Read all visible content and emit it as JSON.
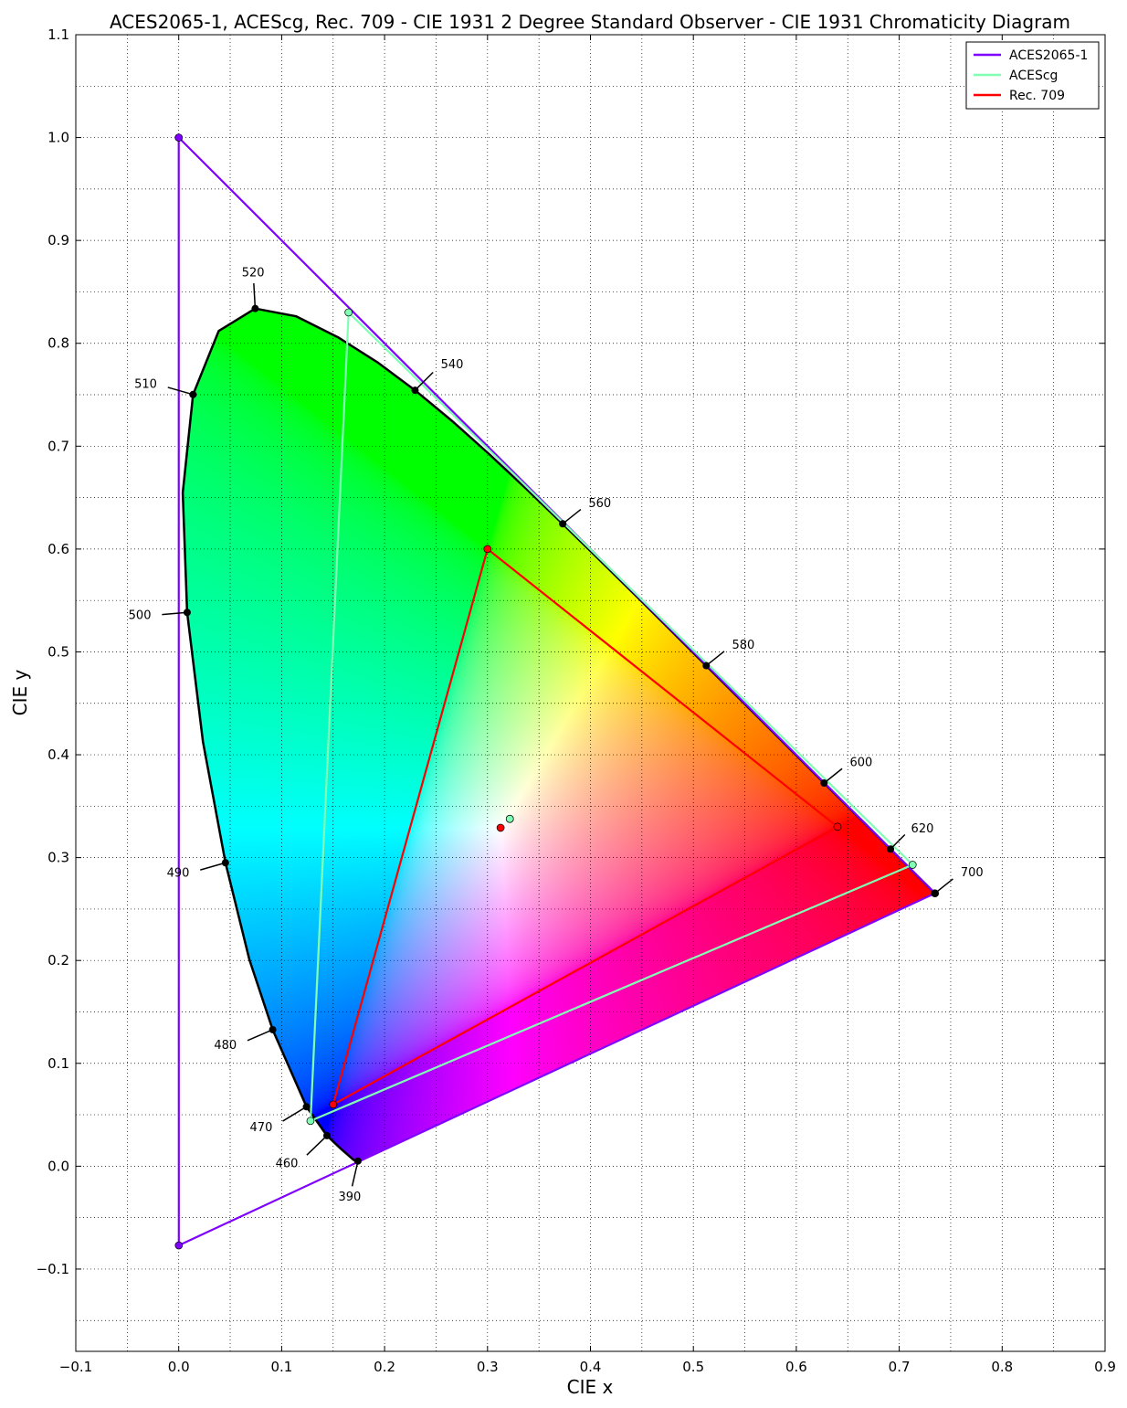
{
  "chart_data": {
    "type": "scatter",
    "title": "ACES2065-1, ACEScg, Rec. 709 - CIE 1931 2 Degree Standard Observer - CIE 1931 Chromaticity Diagram",
    "xlabel": "CIE x",
    "ylabel": "CIE y",
    "xlim": [
      -0.1,
      0.9
    ],
    "ylim": [
      -0.18,
      1.1
    ],
    "xticks": [
      "−0.1",
      "0.0",
      "0.1",
      "0.2",
      "0.3",
      "0.4",
      "0.5",
      "0.6",
      "0.7",
      "0.8",
      "0.9"
    ],
    "yticks": [
      "−0.1",
      "0.0",
      "0.1",
      "0.2",
      "0.3",
      "0.4",
      "0.5",
      "0.6",
      "0.7",
      "0.8",
      "0.9",
      "1.0",
      "1.1"
    ],
    "grid": true,
    "legend_position": "top-right",
    "spectral_locus": [
      [
        0.1741,
        0.005
      ],
      [
        0.1738,
        0.0049
      ],
      [
        0.1733,
        0.0048
      ],
      [
        0.1726,
        0.0048
      ],
      [
        0.1714,
        0.0051
      ],
      [
        0.1689,
        0.0069
      ],
      [
        0.1644,
        0.0109
      ],
      [
        0.1566,
        0.0177
      ],
      [
        0.144,
        0.0297
      ],
      [
        0.1241,
        0.0578
      ],
      [
        0.0913,
        0.1327
      ],
      [
        0.0687,
        0.2007
      ],
      [
        0.0454,
        0.295
      ],
      [
        0.0235,
        0.4127
      ],
      [
        0.0082,
        0.5384
      ],
      [
        0.0039,
        0.6548
      ],
      [
        0.0139,
        0.7502
      ],
      [
        0.0389,
        0.812
      ],
      [
        0.0743,
        0.8338
      ],
      [
        0.1142,
        0.8262
      ],
      [
        0.1547,
        0.8059
      ],
      [
        0.1929,
        0.7816
      ],
      [
        0.2296,
        0.7543
      ],
      [
        0.2658,
        0.7243
      ],
      [
        0.3016,
        0.6923
      ],
      [
        0.3373,
        0.6589
      ],
      [
        0.3731,
        0.6245
      ],
      [
        0.4087,
        0.5896
      ],
      [
        0.4441,
        0.5547
      ],
      [
        0.4788,
        0.5202
      ],
      [
        0.5125,
        0.4866
      ],
      [
        0.5448,
        0.4544
      ],
      [
        0.5752,
        0.4242
      ],
      [
        0.6029,
        0.3965
      ],
      [
        0.627,
        0.3725
      ],
      [
        0.6482,
        0.3514
      ],
      [
        0.6658,
        0.334
      ],
      [
        0.6801,
        0.3197
      ],
      [
        0.6915,
        0.3083
      ],
      [
        0.7006,
        0.2993
      ],
      [
        0.7079,
        0.292
      ],
      [
        0.714,
        0.2859
      ],
      [
        0.719,
        0.2809
      ],
      [
        0.723,
        0.277
      ],
      [
        0.726,
        0.274
      ],
      [
        0.7283,
        0.2717
      ],
      [
        0.73,
        0.27
      ],
      [
        0.7311,
        0.2689
      ],
      [
        0.732,
        0.268
      ],
      [
        0.7327,
        0.2673
      ],
      [
        0.7334,
        0.2666
      ],
      [
        0.734,
        0.266
      ],
      [
        0.7344,
        0.2656
      ],
      [
        0.7346,
        0.2654
      ],
      [
        0.7347,
        0.2653
      ]
    ],
    "wavelength_labels": [
      {
        "label": "390",
        "x": 0.1741,
        "y": 0.005,
        "dx": -0.008,
        "dy": -0.035
      },
      {
        "label": "460",
        "x": 0.144,
        "y": 0.0297,
        "dx": -0.028,
        "dy": -0.027
      },
      {
        "label": "470",
        "x": 0.1241,
        "y": 0.0578,
        "dx": -0.033,
        "dy": -0.02
      },
      {
        "label": "480",
        "x": 0.0913,
        "y": 0.1327,
        "dx": -0.035,
        "dy": -0.015
      },
      {
        "label": "490",
        "x": 0.0454,
        "y": 0.295,
        "dx": -0.035,
        "dy": -0.01
      },
      {
        "label": "500",
        "x": 0.0082,
        "y": 0.5384,
        "dx": -0.035,
        "dy": -0.003
      },
      {
        "label": "510",
        "x": 0.0139,
        "y": 0.7502,
        "dx": -0.035,
        "dy": 0.01
      },
      {
        "label": "520",
        "x": 0.0743,
        "y": 0.8338,
        "dx": -0.002,
        "dy": 0.035
      },
      {
        "label": "540",
        "x": 0.2296,
        "y": 0.7543,
        "dx": 0.025,
        "dy": 0.025
      },
      {
        "label": "560",
        "x": 0.3731,
        "y": 0.6245,
        "dx": 0.025,
        "dy": 0.02
      },
      {
        "label": "580",
        "x": 0.5125,
        "y": 0.4866,
        "dx": 0.025,
        "dy": 0.02
      },
      {
        "label": "600",
        "x": 0.627,
        "y": 0.3725,
        "dx": 0.025,
        "dy": 0.02
      },
      {
        "label": "620",
        "x": 0.6915,
        "y": 0.3083,
        "dx": 0.02,
        "dy": 0.02
      },
      {
        "label": "700",
        "x": 0.7347,
        "y": 0.2653,
        "dx": 0.025,
        "dy": 0.02
      }
    ],
    "series": [
      {
        "name": "ACES2065-1",
        "color": "#7f00ff",
        "primaries": [
          [
            0.7347,
            0.2653
          ],
          [
            0.0,
            1.0
          ],
          [
            0.0001,
            -0.077
          ]
        ],
        "whitepoint": [
          0.32168,
          0.33767
        ]
      },
      {
        "name": "ACEScg",
        "color": "#80ffb4",
        "primaries": [
          [
            0.713,
            0.293
          ],
          [
            0.165,
            0.83
          ],
          [
            0.128,
            0.044
          ]
        ],
        "whitepoint": [
          0.32168,
          0.33767
        ]
      },
      {
        "name": "Rec. 709",
        "color": "#ff0000",
        "primaries": [
          [
            0.64,
            0.33
          ],
          [
            0.3,
            0.6
          ],
          [
            0.15,
            0.06
          ]
        ],
        "whitepoint": [
          0.3127,
          0.329
        ]
      }
    ]
  }
}
